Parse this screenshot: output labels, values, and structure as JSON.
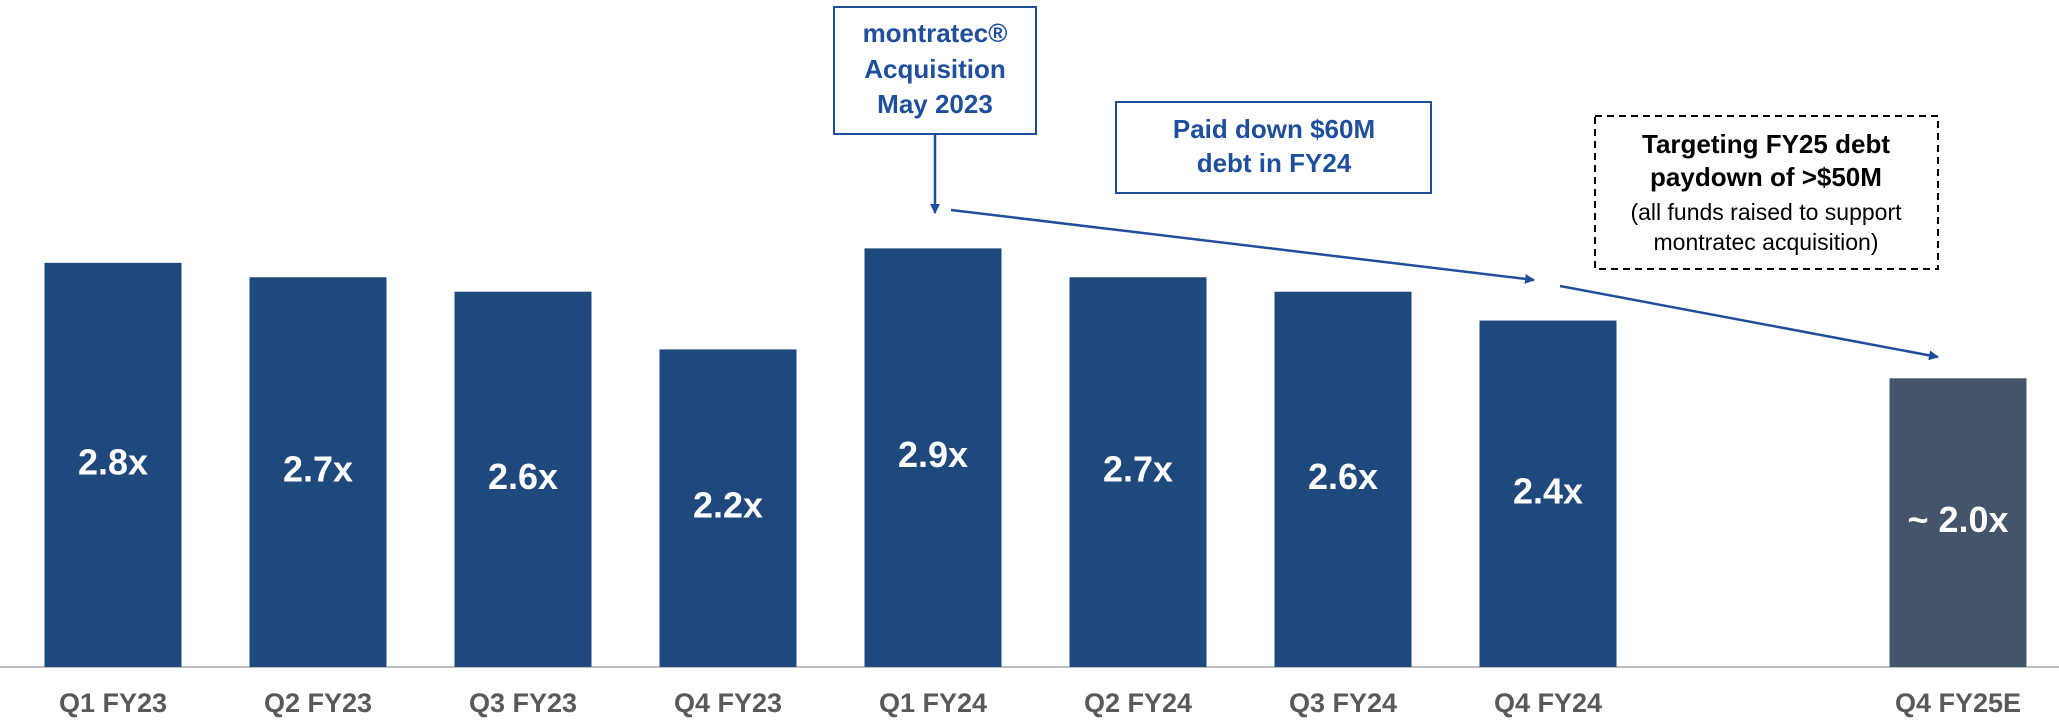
{
  "chart_data": {
    "type": "bar",
    "categories": [
      "Q1 FY23",
      "Q2 FY23",
      "Q3 FY23",
      "Q4 FY23",
      "Q1 FY24",
      "Q2 FY24",
      "Q3 FY24",
      "Q4 FY24",
      null,
      "Q4 FY25E"
    ],
    "values": [
      2.8,
      2.7,
      2.6,
      2.2,
      2.9,
      2.7,
      2.6,
      2.4,
      null,
      2.0
    ],
    "value_labels": [
      "2.8x",
      "2.7x",
      "2.6x",
      "2.2x",
      "2.9x",
      "2.7x",
      "2.6x",
      "2.4x",
      null,
      "~ 2.0x"
    ],
    "colors": [
      "#1f497d",
      "#1f497d",
      "#1f497d",
      "#1f497d",
      "#1f497d",
      "#1f497d",
      "#1f497d",
      "#1f497d",
      null,
      "#44546a"
    ],
    "ylim": [
      0,
      4.6
    ],
    "annotations": [
      {
        "lines": [
          "montratec®",
          "Acquisition",
          "May 2023"
        ]
      },
      {
        "lines": [
          "Paid down $60M",
          "debt in FY24"
        ]
      },
      {
        "lines": [
          "Targeting FY25 debt",
          "paydown of >$50M",
          "(all funds raised to support",
          "montratec acquisition)"
        ]
      }
    ]
  }
}
